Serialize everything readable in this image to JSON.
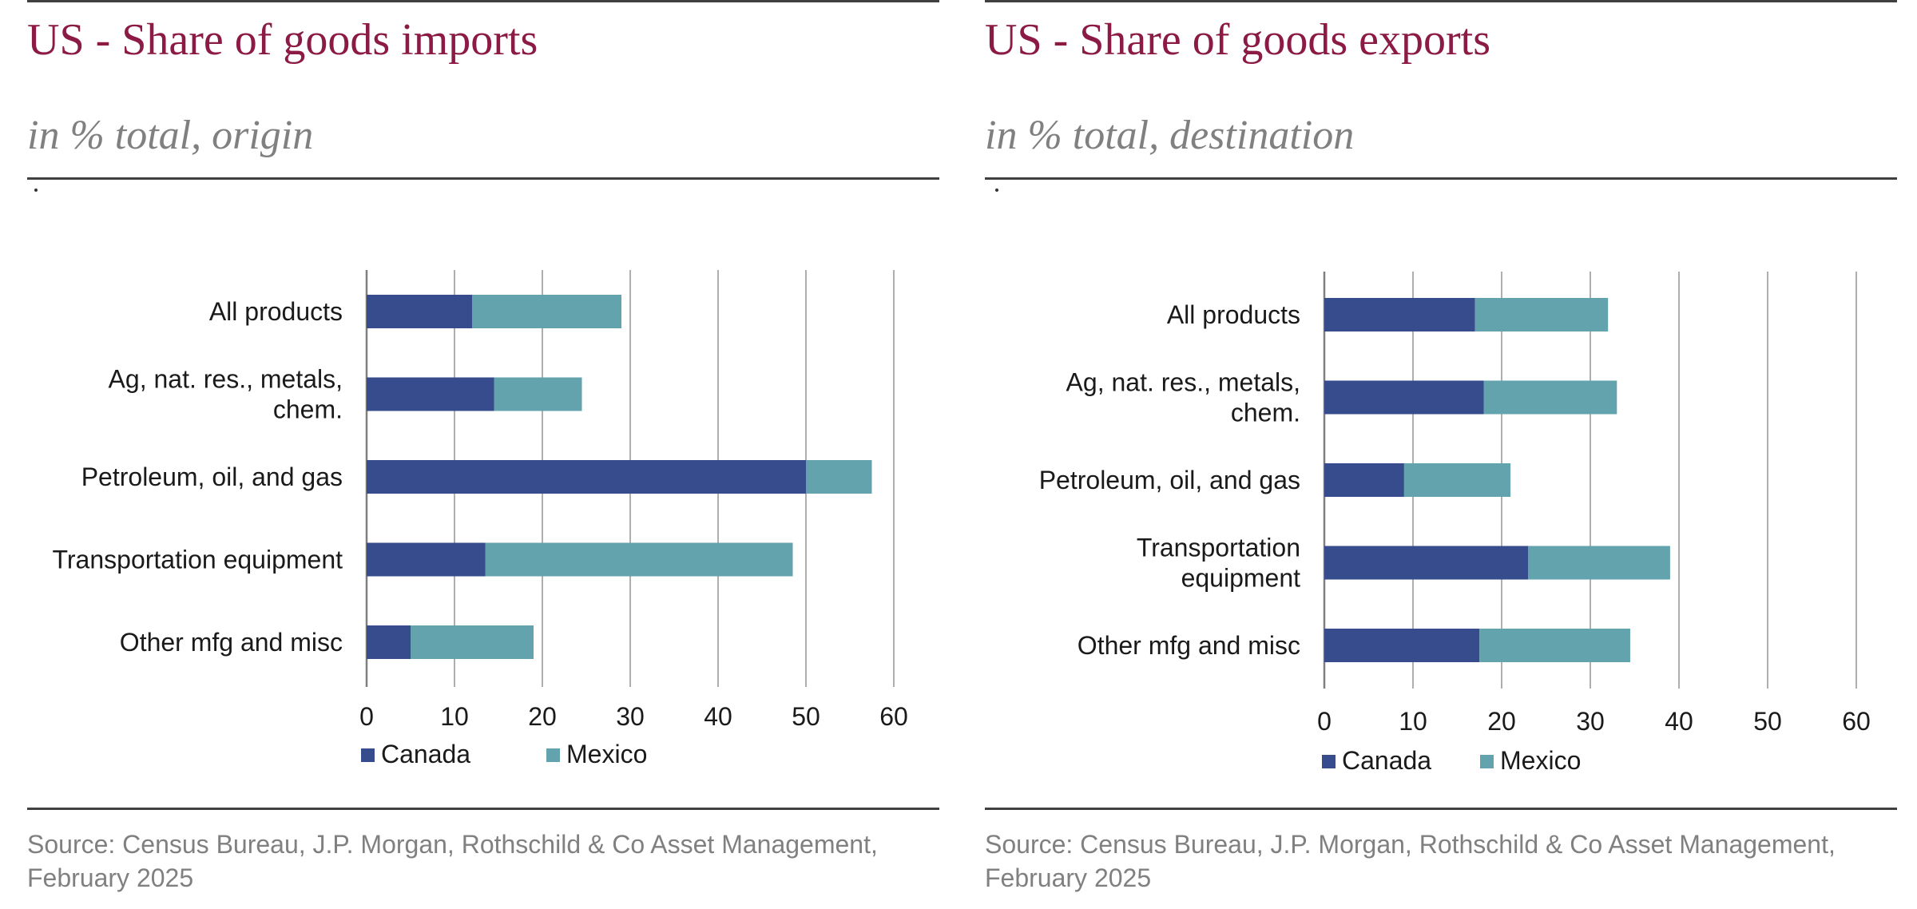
{
  "colors": {
    "canada": "#374c8c",
    "mexico": "#62a3ad",
    "title": "#8b1a44",
    "subtitle": "#808080",
    "source": "#808080"
  },
  "panels": [
    {
      "title": "US - Share of goods imports",
      "subtitle": "in % total, origin",
      "source_line1": "Source: Census Bureau, J.P. Morgan, Rothschild & Co Asset Management,",
      "source_line2": "February 2025"
    },
    {
      "title": "US - Share of goods exports",
      "subtitle": "in % total, destination",
      "source_line1": "Source: Census Bureau, J.P. Morgan, Rothschild & Co Asset Management,",
      "source_line2": "February 2025"
    }
  ],
  "chart_data": [
    {
      "type": "bar",
      "orientation": "horizontal",
      "stacked": true,
      "title": "US - Share of goods imports",
      "subtitle": "in % total, origin",
      "categories": [
        [
          "All products"
        ],
        [
          "Ag, nat. res., metals,",
          "chem."
        ],
        [
          "Petroleum, oil, and gas"
        ],
        [
          "Transportation equipment"
        ],
        [
          "Other mfg and misc"
        ]
      ],
      "series": [
        {
          "name": "Canada",
          "color": "#374c8c",
          "values": [
            12,
            14.5,
            50,
            13.5,
            5
          ]
        },
        {
          "name": "Mexico",
          "color": "#62a3ad",
          "values": [
            17,
            10,
            7.5,
            35,
            14
          ]
        }
      ],
      "xlim": [
        0,
        60
      ],
      "xticks": [
        0,
        10,
        20,
        30,
        40,
        50,
        60
      ],
      "grid": "vertical",
      "legend": "bottom"
    },
    {
      "type": "bar",
      "orientation": "horizontal",
      "stacked": true,
      "title": "US - Share of goods exports",
      "subtitle": "in % total, destination",
      "categories": [
        [
          "All products"
        ],
        [
          "Ag, nat. res., metals,",
          "chem."
        ],
        [
          "Petroleum, oil, and gas"
        ],
        [
          "Transportation",
          "equipment"
        ],
        [
          "Other mfg and misc"
        ]
      ],
      "series": [
        {
          "name": "Canada",
          "color": "#374c8c",
          "values": [
            17,
            18,
            9,
            23,
            17.5
          ]
        },
        {
          "name": "Mexico",
          "color": "#62a3ad",
          "values": [
            15,
            15,
            12,
            16,
            17
          ]
        }
      ],
      "xlim": [
        0,
        60
      ],
      "xticks": [
        0,
        10,
        20,
        30,
        40,
        50,
        60
      ],
      "grid": "vertical",
      "legend": "bottom"
    }
  ]
}
